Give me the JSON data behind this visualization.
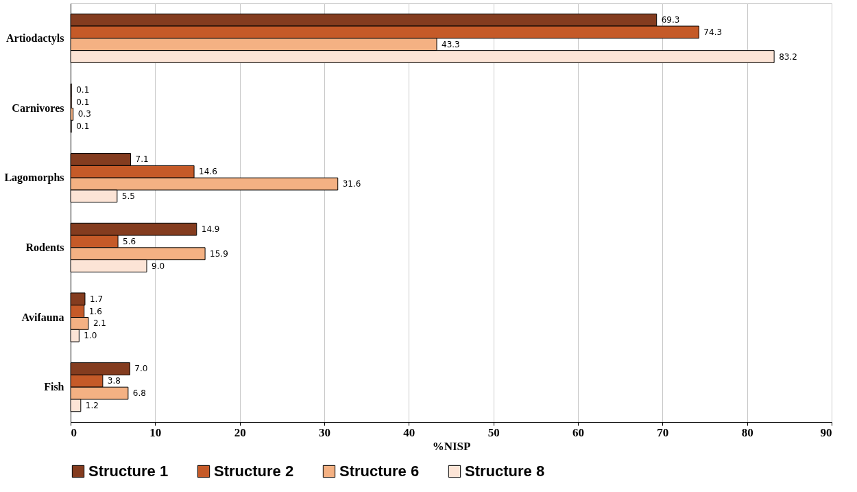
{
  "chart_data": {
    "type": "bar",
    "orientation": "horizontal",
    "xlabel": "%NISP",
    "categories": [
      "Artiodactyls",
      "Carnivores",
      "Lagomorphs",
      "Rodents",
      "Avifauna",
      "Fish"
    ],
    "series": [
      {
        "name": "Structure 1",
        "color": "#843c1f",
        "values": [
          69.3,
          0.1,
          7.1,
          14.9,
          1.7,
          7.0
        ],
        "value_labels": [
          "69.3",
          "0.1",
          "7.1",
          "14.9",
          "1.7",
          "7.0"
        ]
      },
      {
        "name": "Structure 2",
        "color": "#c55a28",
        "values": [
          74.3,
          0.1,
          14.6,
          5.6,
          1.6,
          3.8
        ],
        "value_labels": [
          "74.3",
          "0.1",
          "14.6",
          "5.6",
          "1.6",
          "3.8"
        ]
      },
      {
        "name": "Structure 6",
        "color": "#f4b183",
        "values": [
          43.3,
          0.3,
          31.6,
          15.9,
          2.1,
          6.8
        ],
        "value_labels": [
          "43.3",
          "0.3",
          "31.6",
          "15.9",
          "2.1",
          "6.8"
        ]
      },
      {
        "name": "Structure 8",
        "color": "#fce4d6",
        "values": [
          83.2,
          0.1,
          5.5,
          9.0,
          1.0,
          1.2
        ],
        "value_labels": [
          "83.2",
          "0.1",
          "5.5",
          "9.0",
          "1.0",
          "1.2"
        ]
      }
    ],
    "xlim": [
      0,
      90
    ],
    "xticks": [
      0,
      10,
      20,
      30,
      40,
      50,
      60,
      70,
      80,
      90
    ],
    "grid": "x",
    "legend": "bottom"
  }
}
